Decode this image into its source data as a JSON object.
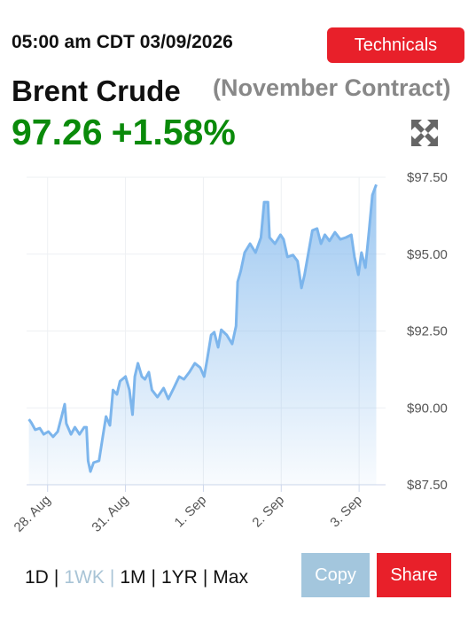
{
  "header": {
    "timestamp": "05:00 am CDT 03/09/2026",
    "button": "Technicals",
    "name": "Brent Crude",
    "contract": "(November Contract)",
    "price": "97.26",
    "change": "+1.58%"
  },
  "controls": {
    "ranges": [
      "1D",
      "1WK",
      "1M",
      "1YR",
      "Max"
    ],
    "separator": "|",
    "copy": "Copy",
    "share": "Share"
  },
  "chart_data": {
    "type": "area",
    "color": "#7cb5ec",
    "grid": true,
    "ylim": [
      87.5,
      97.5
    ],
    "yticks": [
      {
        "value": 97.5,
        "label": "$97.50"
      },
      {
        "value": 95,
        "label": "$95.00"
      },
      {
        "value": 92.5,
        "label": "$92.50"
      },
      {
        "value": 90,
        "label": "$90.00"
      },
      {
        "value": 87.5,
        "label": "$87.50"
      }
    ],
    "xlim": [
      -0.27,
      4.34
    ],
    "xticks": [
      {
        "value": 0,
        "label": "28. Aug"
      },
      {
        "value": 1,
        "label": "31. Aug"
      },
      {
        "value": 2,
        "label": "1. Sep"
      },
      {
        "value": 3,
        "label": "2. Sep"
      },
      {
        "value": 4,
        "label": "3. Sep"
      }
    ],
    "x": [
      -0.24,
      -0.21,
      -0.16,
      -0.1,
      -0.05,
      0.01,
      0.07,
      0.13,
      0.18,
      0.22,
      0.24,
      0.3,
      0.35,
      0.41,
      0.47,
      0.5,
      0.52,
      0.55,
      0.59,
      0.66,
      0.71,
      0.75,
      0.8,
      0.84,
      0.89,
      0.93,
      1.0,
      1.05,
      1.09,
      1.12,
      1.16,
      1.21,
      1.25,
      1.3,
      1.34,
      1.41,
      1.49,
      1.55,
      1.62,
      1.69,
      1.75,
      1.82,
      1.89,
      1.96,
      2.01,
      2.05,
      2.1,
      2.14,
      2.19,
      2.23,
      2.3,
      2.37,
      2.42,
      2.44,
      2.48,
      2.53,
      2.6,
      2.67,
      2.74,
      2.78,
      2.83,
      2.85,
      2.92,
      2.99,
      3.03,
      3.08,
      3.15,
      3.21,
      3.26,
      3.3,
      3.35,
      3.4,
      3.46,
      3.51,
      3.56,
      3.62,
      3.69,
      3.76,
      3.83,
      3.9,
      3.94,
      3.99,
      4.03,
      4.08,
      4.13,
      4.17,
      4.22
    ],
    "values": [
      89.63,
      89.52,
      89.29,
      89.34,
      89.14,
      89.23,
      89.06,
      89.23,
      89.72,
      90.12,
      89.49,
      89.14,
      89.37,
      89.14,
      89.37,
      89.37,
      88.28,
      87.93,
      88.22,
      88.28,
      89.09,
      89.72,
      89.43,
      90.58,
      90.44,
      90.87,
      91.02,
      90.58,
      89.78,
      91.02,
      91.45,
      91.02,
      90.93,
      91.16,
      90.58,
      90.35,
      90.64,
      90.29,
      90.64,
      91.02,
      90.93,
      91.16,
      91.45,
      91.31,
      91.02,
      91.59,
      92.37,
      92.46,
      91.97,
      92.54,
      92.37,
      92.08,
      92.66,
      94.1,
      94.45,
      95.05,
      95.34,
      95.05,
      95.54,
      96.69,
      96.69,
      95.54,
      95.34,
      95.63,
      95.48,
      94.91,
      94.97,
      94.77,
      93.9,
      94.33,
      95.05,
      95.77,
      95.83,
      95.34,
      95.63,
      95.43,
      95.71,
      95.48,
      95.54,
      95.63,
      94.91,
      94.33,
      95.05,
      94.56,
      95.83,
      96.92,
      97.26
    ]
  }
}
